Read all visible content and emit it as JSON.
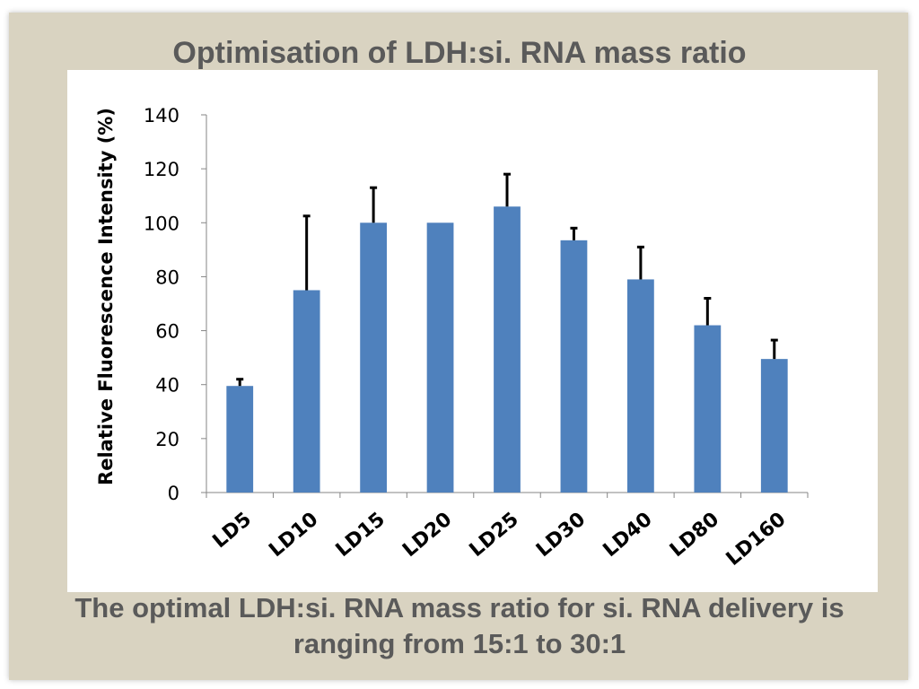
{
  "slide": {
    "title": "Optimisation of LDH:si. RNA mass ratio",
    "caption_line1": "The optimal LDH:si. RNA mass ratio for si. RNA delivery is",
    "caption_line2": "ranging from 15:1 to 30:1"
  },
  "chart_data": {
    "type": "bar",
    "title": "",
    "xlabel": "",
    "ylabel": "Relative Fluorescence Intensity (%)",
    "categories": [
      "LD5",
      "LD10",
      "LD15",
      "LD20",
      "LD25",
      "LD30",
      "LD40",
      "LD80",
      "LD160"
    ],
    "values": [
      39.5,
      75,
      100,
      100,
      106,
      93.5,
      79,
      62,
      49.5
    ],
    "errors": [
      2.5,
      27.5,
      13,
      0,
      12,
      4.5,
      12,
      10,
      7
    ],
    "ylim": [
      0,
      140
    ],
    "yticks": [
      0,
      20,
      40,
      60,
      80,
      100,
      120,
      140
    ],
    "bar_color": "#4f81bd",
    "error_color": "#000000",
    "grid": false,
    "legend": "none"
  }
}
